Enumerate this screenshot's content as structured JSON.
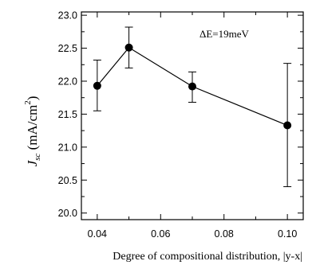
{
  "chart_data": {
    "type": "scatter",
    "title": "",
    "xlabel": "Degree of compositional distribution, |y-x|",
    "ylabel": {
      "symbol": "J",
      "subscript": "sc",
      "unit_open": " (mA/cm",
      "unit_sup": "2",
      "unit_close": ")"
    },
    "xlim": [
      0.035,
      0.105
    ],
    "ylim": [
      19.9,
      23.05
    ],
    "xticks": [
      0.04,
      0.06,
      0.08,
      0.1
    ],
    "xtick_labels": [
      "0.04",
      "0.06",
      "0.08",
      "0.10"
    ],
    "yticks": [
      20.0,
      20.5,
      21.0,
      21.5,
      22.0,
      22.5,
      23.0
    ],
    "ytick_labels": [
      "20.0",
      "20.5",
      "21.0",
      "21.5",
      "22.0",
      "22.5",
      "23.0"
    ],
    "annotation": "ΔE=19meV",
    "grid": false,
    "legend": "none",
    "series": [
      {
        "x": [
          0.04,
          0.05,
          0.07,
          0.1
        ],
        "y": [
          21.93,
          22.51,
          21.92,
          21.33
        ],
        "yerr_low": [
          21.55,
          22.2,
          21.68,
          20.4
        ],
        "yerr_high": [
          22.32,
          22.82,
          22.14,
          22.27
        ],
        "connected": true,
        "marker": "filled-circle",
        "color": "#000000"
      }
    ]
  }
}
